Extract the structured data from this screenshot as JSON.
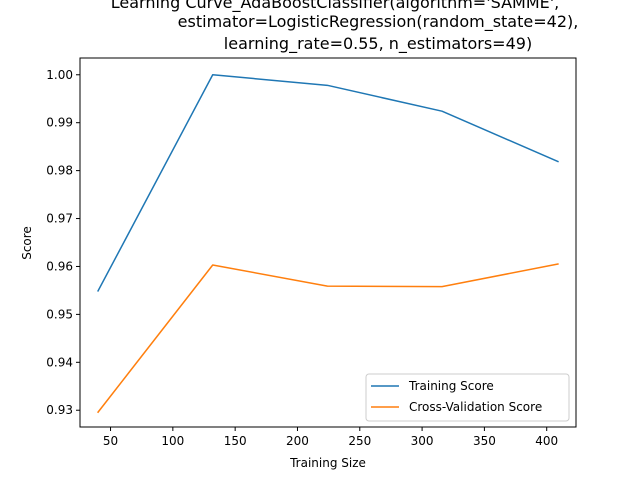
{
  "chart_data": {
    "type": "line",
    "title_lines": [
      "Learning Curve_AdaBoostClassifier(algorithm='SAMME',",
      "estimator=LogisticRegression(random_state=42),",
      "learning_rate=0.55, n_estimators=49)"
    ],
    "xlabel": "Training Size",
    "ylabel": "Score",
    "xlim": [
      25.5,
      423.5
    ],
    "ylim": [
      0.9265,
      1.0035
    ],
    "xticks": [
      50,
      100,
      150,
      200,
      250,
      300,
      350,
      400
    ],
    "yticks": [
      0.93,
      0.94,
      0.95,
      0.96,
      0.97,
      0.98,
      0.99,
      1.0
    ],
    "ytick_labels": [
      "0.93",
      "0.94",
      "0.95",
      "0.96",
      "0.97",
      "0.98",
      "0.99",
      "1.00"
    ],
    "legend_position": "lower-right",
    "grid": false,
    "x": [
      40,
      132,
      224,
      316,
      409
    ],
    "series": [
      {
        "name": "Training Score",
        "color": "#1f77b4",
        "values": [
          0.9549,
          1.0,
          0.9978,
          0.9924,
          0.9819
        ]
      },
      {
        "name": "Cross-Validation Score",
        "color": "#ff7f0e",
        "values": [
          0.9296,
          0.9603,
          0.9559,
          0.9558,
          0.9605
        ]
      }
    ]
  }
}
